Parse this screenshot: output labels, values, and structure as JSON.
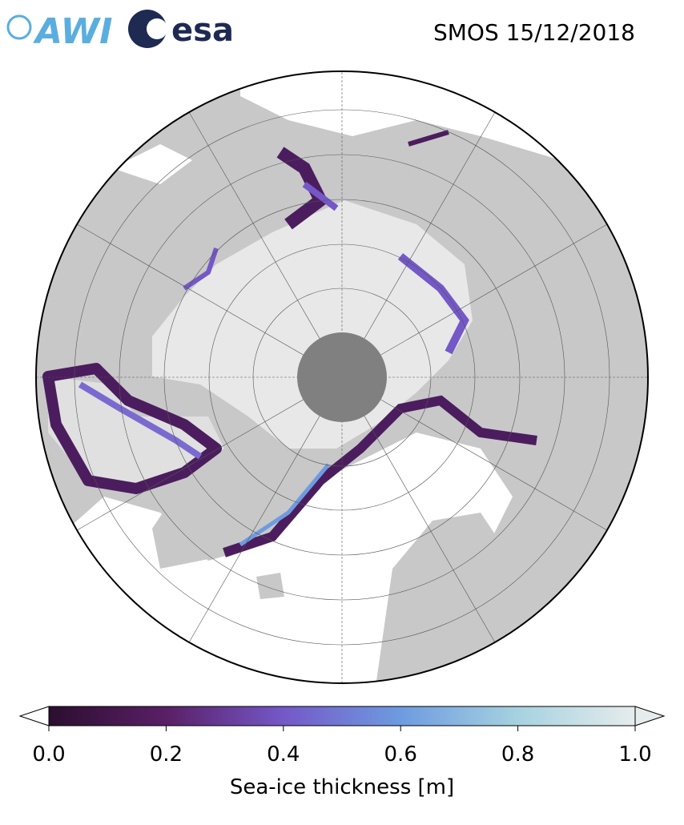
{
  "header": {
    "logos": [
      "AWI",
      "esa"
    ],
    "title": "SMOS 15/12/2018"
  },
  "colorbar": {
    "label": "Sea-ice thickness [m]",
    "lim": [
      0,
      1
    ],
    "ticks": [
      {
        "value": 0,
        "label": "0.0"
      },
      {
        "value": 0.2,
        "label": "0.2"
      },
      {
        "value": 0.4,
        "label": "0.4"
      },
      {
        "value": 0.6,
        "label": "0.6"
      },
      {
        "value": 0.8,
        "label": "0.8"
      },
      {
        "value": 1,
        "label": "1.0"
      }
    ],
    "colors": [
      "#2a0f2e",
      "#5a1f66",
      "#7458c8",
      "#6e9be0",
      "#a6d2e0",
      "#e6ecec"
    ]
  }
}
